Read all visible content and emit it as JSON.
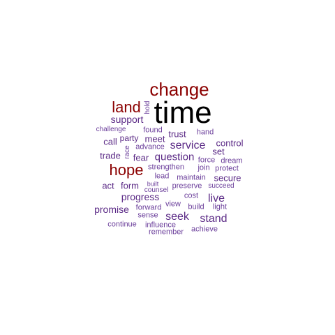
{
  "colors": {
    "top": "#000000",
    "high": "#8b0000",
    "mid": "#5b2a86",
    "low": "#6a3d9a"
  },
  "words": [
    "time",
    "change",
    "land",
    "hope",
    "hold",
    "support",
    "challenge",
    "found",
    "trust",
    "hand",
    "call",
    "party",
    "meet",
    "service",
    "control",
    "set",
    "trade",
    "race",
    "advance",
    "fear",
    "question",
    "force",
    "dream",
    "strengthen",
    "join",
    "protect",
    "lead",
    "maintain",
    "secure",
    "act",
    "form",
    "built",
    "preserve",
    "succeed",
    "counsel",
    "progress",
    "cost",
    "live",
    "view",
    "promise",
    "forward",
    "build",
    "light",
    "sense",
    "seek",
    "stand",
    "continue",
    "influence",
    "achieve",
    "remember"
  ]
}
